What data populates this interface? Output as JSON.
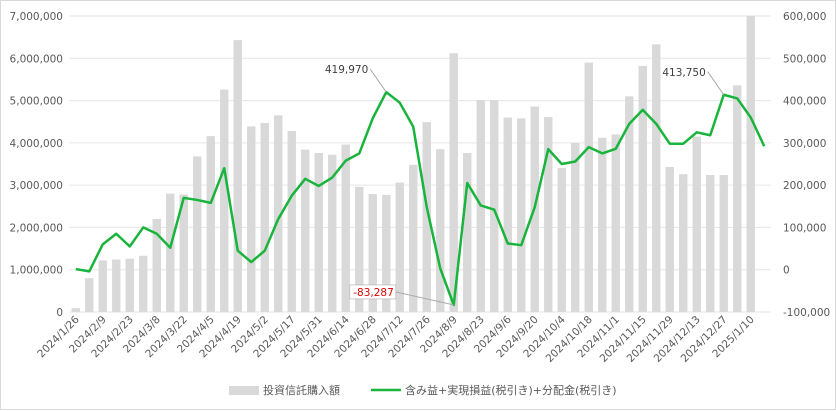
{
  "chart_data": {
    "type": "bar+line",
    "x": [
      "2024/1/26",
      "2024/2/2",
      "2024/2/9",
      "2024/2/16",
      "2024/2/23",
      "2024/3/1",
      "2024/3/8",
      "2024/3/15",
      "2024/3/22",
      "2024/3/29",
      "2024/4/5",
      "2024/4/12",
      "2024/4/19",
      "2024/4/26",
      "2024/5/2",
      "2024/5/10",
      "2024/5/17",
      "2024/5/24",
      "2024/5/31",
      "2024/6/7",
      "2024/6/14",
      "2024/6/21",
      "2024/6/28",
      "2024/7/5",
      "2024/7/12",
      "2024/7/19",
      "2024/7/26",
      "2024/8/2",
      "2024/8/9",
      "2024/8/16",
      "2024/8/23",
      "2024/8/30",
      "2024/9/6",
      "2024/9/13",
      "2024/9/20",
      "2024/9/27",
      "2024/10/4",
      "2024/10/11",
      "2024/10/18",
      "2024/10/25",
      "2024/11/1",
      "2024/11/8",
      "2024/11/15",
      "2024/11/22",
      "2024/11/29",
      "2024/12/6",
      "2024/12/13",
      "2024/12/20",
      "2024/12/27",
      "2025/1/3",
      "2025/1/10",
      "2025/1/17"
    ],
    "x_tick_labels": [
      "2024/1/26",
      "2024/2/9",
      "2024/2/23",
      "2024/3/8",
      "2024/3/22",
      "2024/4/5",
      "2024/4/19",
      "2024/5/2",
      "2024/5/17",
      "2024/5/31",
      "2024/6/14",
      "2024/6/28",
      "2024/7/12",
      "2024/7/26",
      "2024/8/9",
      "2024/8/23",
      "2024/9/6",
      "2024/9/20",
      "2024/10/4",
      "2024/10/18",
      "2024/11/1",
      "2024/11/15",
      "2024/11/29",
      "2024/12/13",
      "2024/12/27",
      "2025/1/10"
    ],
    "series": [
      {
        "name": "投資信託購入額",
        "kind": "bar",
        "axis": "left",
        "color": "#d9d9d9",
        "values": [
          90000,
          800000,
          1220000,
          1240000,
          1260000,
          1330000,
          2200000,
          2800000,
          2780000,
          3680000,
          4160000,
          5260000,
          6430000,
          4390000,
          4470000,
          4650000,
          4280000,
          3840000,
          3760000,
          3720000,
          3960000,
          2960000,
          2790000,
          2770000,
          3060000,
          3480000,
          4490000,
          3850000,
          6120000,
          3760000,
          5010000,
          5010000,
          4600000,
          4580000,
          4860000,
          4610000,
          3410000,
          4000000,
          5900000,
          4120000,
          4200000,
          5100000,
          5820000,
          6330000,
          3430000,
          3260000,
          4150000,
          3240000,
          3240000,
          5360000,
          7000000,
          0
        ]
      },
      {
        "name": "含み益+実現損益(税引き)+分配金(税引き)",
        "kind": "line",
        "axis": "right",
        "color": "#18b43c",
        "values": [
          1500,
          -4000,
          60000,
          85000,
          55000,
          100000,
          85000,
          52000,
          170000,
          165000,
          158000,
          240000,
          45000,
          18000,
          45000,
          120000,
          175000,
          215000,
          198000,
          218000,
          258000,
          275000,
          358000,
          419970,
          395000,
          338000,
          148000,
          3000,
          -83287,
          205000,
          152000,
          142000,
          62000,
          58000,
          148000,
          285000,
          250000,
          256000,
          290000,
          275000,
          286000,
          345000,
          378000,
          345000,
          298000,
          298000,
          325000,
          318000,
          413750,
          405000,
          360000,
          292000
        ]
      }
    ],
    "y_left_ticks": [
      "0",
      "1,000,000",
      "2,000,000",
      "3,000,000",
      "4,000,000",
      "5,000,000",
      "6,000,000",
      "7,000,000"
    ],
    "y_left_range": [
      0,
      7000000
    ],
    "y_right_ticks": [
      "-100,000",
      "0",
      "100,000",
      "200,000",
      "300,000",
      "400,000",
      "500,000",
      "600,000"
    ],
    "y_right_range": [
      -100000,
      600000
    ],
    "annotations": [
      {
        "text": "419,970",
        "index": 23,
        "color": "#404040"
      },
      {
        "text": "-83,287",
        "index": 28,
        "color": "#e00000"
      },
      {
        "text": "413,750",
        "index": 48,
        "color": "#404040"
      }
    ],
    "legend_position": "bottom",
    "grid": true
  },
  "legend": {
    "bar_label": "投資信託購入額",
    "line_label": "含み益+実現損益(税引き)+分配金(税引き)"
  }
}
